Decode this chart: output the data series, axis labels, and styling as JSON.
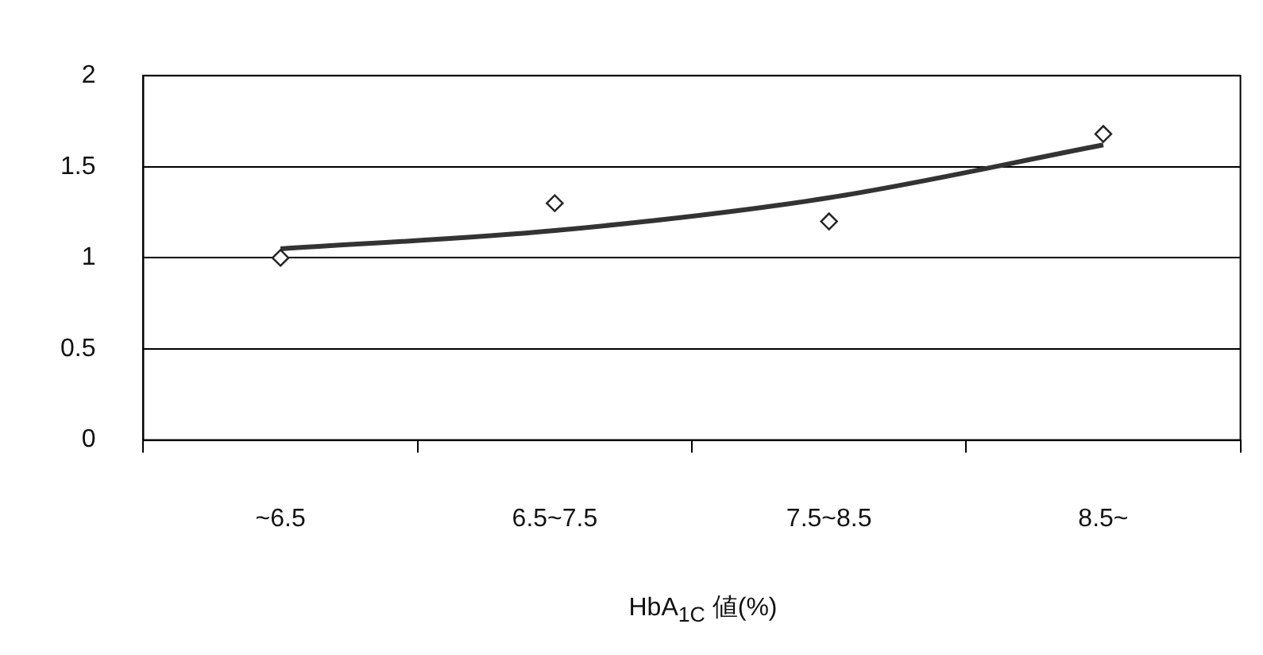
{
  "chart_data": {
    "type": "scatter",
    "xlabel": "HbA$_{1C}$ 値(%)",
    "categories": [
      "~6.5",
      "6.5~7.5",
      "7.5~8.5",
      "8.5~"
    ],
    "series": [
      {
        "color": "#222222",
        "values": [
          1.0,
          1.3,
          1.2,
          1.68
        ],
        "marker": "diamond"
      },
      {
        "type": "line",
        "color": "#333333",
        "values": [
          1.05,
          1.15,
          1.33,
          1.62
        ],
        "marker": "none",
        "line_style": "solid"
      }
    ],
    "ylim": [
      0,
      2
    ],
    "yticks": [
      0,
      0.5,
      1,
      1.5,
      2
    ],
    "grid": "y",
    "legend": false
  }
}
